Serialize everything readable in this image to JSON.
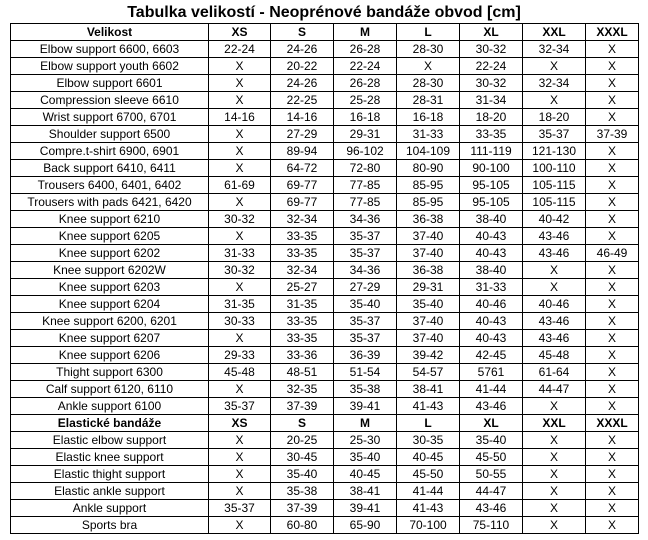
{
  "title": "Tabulka velikostí - Neoprénové bandáže obvod [cm]",
  "neoprene_header": [
    "Velikost",
    "XS",
    "S",
    "M",
    "L",
    "XL",
    "XXL",
    "XXXL"
  ],
  "neoprene_rows": [
    [
      "Elbow support 6600, 6603",
      "22-24",
      "24-26",
      "26-28",
      "28-30",
      "30-32",
      "32-34",
      "X"
    ],
    [
      "Elbow support youth 6602",
      "X",
      "20-22",
      "22-24",
      "X",
      "22-24",
      "X",
      "X"
    ],
    [
      "Elbow support 6601",
      "X",
      "24-26",
      "26-28",
      "28-30",
      "30-32",
      "32-34",
      "X"
    ],
    [
      "Compression sleeve 6610",
      "X",
      "22-25",
      "25-28",
      "28-31",
      "31-34",
      "X",
      "X"
    ],
    [
      "Wrist support 6700, 6701",
      "14-16",
      "14-16",
      "16-18",
      "16-18",
      "18-20",
      "18-20",
      "X"
    ],
    [
      "Shoulder support 6500",
      "X",
      "27-29",
      "29-31",
      "31-33",
      "33-35",
      "35-37",
      "37-39"
    ],
    [
      "Compre.t-shirt 6900, 6901",
      "X",
      "89-94",
      "96-102",
      "104-109",
      "111-119",
      "121-130",
      "X"
    ],
    [
      "Back support 6410, 6411",
      "X",
      "64-72",
      "72-80",
      "80-90",
      "90-100",
      "100-110",
      "X"
    ],
    [
      "Trousers 6400, 6401, 6402",
      "61-69",
      "69-77",
      "77-85",
      "85-95",
      "95-105",
      "105-115",
      "X"
    ],
    [
      "Trousers with pads 6421, 6420",
      "X",
      "69-77",
      "77-85",
      "85-95",
      "95-105",
      "105-115",
      "X"
    ],
    [
      "Knee support 6210",
      "30-32",
      "32-34",
      "34-36",
      "36-38",
      "38-40",
      "40-42",
      "X"
    ],
    [
      "Knee support 6205",
      "X",
      "33-35",
      "35-37",
      "37-40",
      "40-43",
      "43-46",
      "X"
    ],
    [
      "Knee support 6202",
      "31-33",
      "33-35",
      "35-37",
      "37-40",
      "40-43",
      "43-46",
      "46-49"
    ],
    [
      "Knee support 6202W",
      "30-32",
      "32-34",
      "34-36",
      "36-38",
      "38-40",
      "X",
      "X"
    ],
    [
      "Knee support 6203",
      "X",
      "25-27",
      "27-29",
      "29-31",
      "31-33",
      "X",
      "X"
    ],
    [
      "Knee support 6204",
      "31-35",
      "31-35",
      "35-40",
      "35-40",
      "40-46",
      "40-46",
      "X"
    ],
    [
      "Knee support 6200, 6201",
      "30-33",
      "33-35",
      "35-37",
      "37-40",
      "40-43",
      "43-46",
      "X"
    ],
    [
      "Knee support 6207",
      "X",
      "33-35",
      "35-37",
      "37-40",
      "40-43",
      "43-46",
      "X"
    ],
    [
      "Knee support 6206",
      "29-33",
      "33-36",
      "36-39",
      "39-42",
      "42-45",
      "45-48",
      "X"
    ],
    [
      "Thight support 6300",
      "45-48",
      "48-51",
      "51-54",
      "54-57",
      "5761",
      "61-64",
      "X"
    ],
    [
      "Calf support 6120, 6110",
      "X",
      "32-35",
      "35-38",
      "38-41",
      "41-44",
      "44-47",
      "X"
    ],
    [
      "Ankle support 6100",
      "35-37",
      "37-39",
      "39-41",
      "41-43",
      "43-46",
      "X",
      "X"
    ]
  ],
  "elastic_header": [
    "Elastické bandáže",
    "XS",
    "S",
    "M",
    "L",
    "XL",
    "XXL",
    "XXXL"
  ],
  "elastic_rows": [
    [
      "Elastic elbow support",
      "X",
      "20-25",
      "25-30",
      "30-35",
      "35-40",
      "X",
      "X"
    ],
    [
      "Elastic knee support",
      "X",
      "30-45",
      "35-40",
      "40-45",
      "45-50",
      "X",
      "X"
    ],
    [
      "Elastic thight support",
      "X",
      "35-40",
      "40-45",
      "45-50",
      "50-55",
      "X",
      "X"
    ],
    [
      "Elastic ankle support",
      "X",
      "35-38",
      "38-41",
      "41-44",
      "44-47",
      "X",
      "X"
    ],
    [
      "Ankle support",
      "35-37",
      "37-39",
      "39-41",
      "41-43",
      "43-46",
      "X",
      "X"
    ],
    [
      "Sports bra",
      "X",
      "60-80",
      "65-90",
      "70-100",
      "75-110",
      "X",
      "X"
    ]
  ]
}
